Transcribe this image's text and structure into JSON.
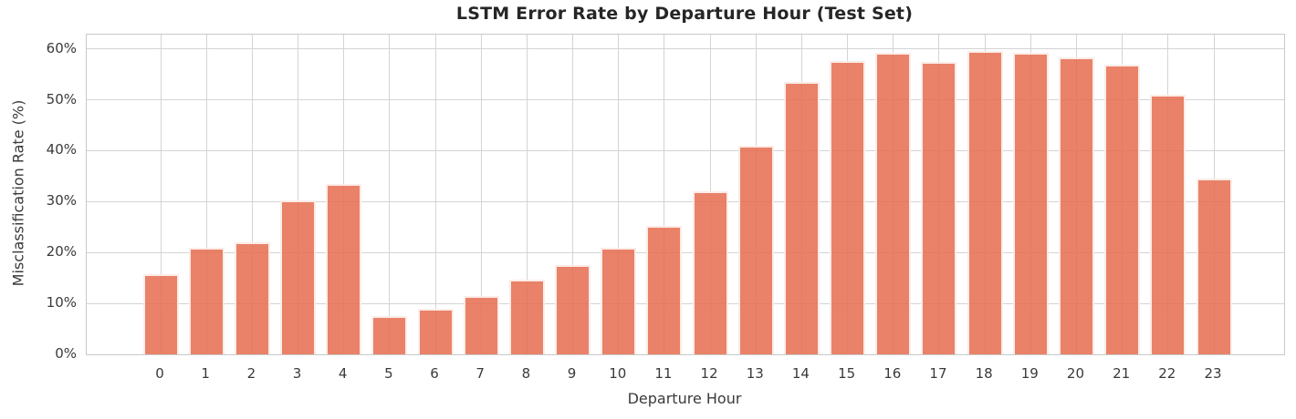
{
  "chart_data": {
    "type": "bar",
    "title": "LSTM Error Rate by Departure Hour (Test Set)",
    "xlabel": "Departure Hour",
    "ylabel": "Misclassification Rate (%)",
    "categories": [
      "0",
      "1",
      "2",
      "3",
      "4",
      "5",
      "6",
      "7",
      "8",
      "9",
      "10",
      "11",
      "12",
      "13",
      "14",
      "15",
      "16",
      "17",
      "18",
      "19",
      "20",
      "21",
      "22",
      "23"
    ],
    "values": [
      15.7,
      20.9,
      22.0,
      30.3,
      33.4,
      7.5,
      8.9,
      11.4,
      14.6,
      17.5,
      20.9,
      25.2,
      32.0,
      40.9,
      53.5,
      57.6,
      59.3,
      57.4,
      59.5,
      59.3,
      58.3,
      56.9,
      51.0,
      34.6
    ],
    "ytick_values": [
      0,
      10,
      20,
      30,
      40,
      50,
      60
    ],
    "ytick_labels": [
      "0%",
      "10%",
      "20%",
      "30%",
      "40%",
      "50%",
      "60%"
    ],
    "ylim": [
      0,
      62.8
    ],
    "grid": true,
    "legend": "none",
    "colors": {
      "bar_fill": "#e56c4e",
      "bar_fill_alpha": 0.85,
      "bar_edge": "#ffffff",
      "grid_line": "#d4d4d4",
      "spine": "#c9c9c9",
      "tick_text": "#3a3a3a",
      "title_text": "#262626",
      "background": "#ffffff"
    }
  }
}
